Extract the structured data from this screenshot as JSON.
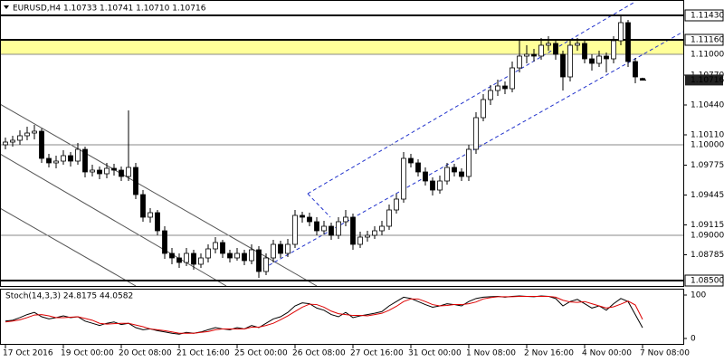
{
  "chart_data": [
    {
      "type": "candlestick",
      "title": "EURUSD,H4 1.10733 1.10741 1.10710 1.10716",
      "ohlc": [
        [
          1.1,
          1.1008,
          1.0995,
          1.1003
        ],
        [
          1.1003,
          1.101,
          1.0998,
          1.1005
        ],
        [
          1.1005,
          1.1016,
          1.1,
          1.101
        ],
        [
          1.101,
          1.102,
          1.1005,
          1.1013
        ],
        [
          1.1013,
          1.1022,
          1.1006,
          1.1015
        ],
        [
          1.1015,
          1.1018,
          1.098,
          1.0985
        ],
        [
          1.0985,
          1.099,
          1.0975,
          1.098
        ],
        [
          1.098,
          1.0988,
          1.0974,
          1.0982
        ],
        [
          1.0982,
          1.0994,
          1.0978,
          1.0988
        ],
        [
          1.0988,
          1.0992,
          1.0976,
          1.0982
        ],
        [
          1.0982,
          1.1002,
          1.0978,
          1.0995
        ],
        [
          1.0995,
          1.0998,
          1.0964,
          1.097
        ],
        [
          1.097,
          1.0978,
          1.0965,
          1.0972
        ],
        [
          1.0972,
          1.0976,
          1.0962,
          1.0968
        ],
        [
          1.0968,
          1.098,
          1.0963,
          1.0974
        ],
        [
          1.0974,
          1.0979,
          1.0966,
          1.0972
        ],
        [
          1.0972,
          1.0976,
          1.096,
          1.0965
        ],
        [
          1.0965,
          1.1038,
          1.096,
          1.0975
        ],
        [
          1.0975,
          1.098,
          1.094,
          1.0945
        ],
        [
          1.0945,
          1.095,
          1.0915,
          1.092
        ],
        [
          1.092,
          1.093,
          1.0914,
          1.0925
        ],
        [
          1.0925,
          1.0928,
          1.09,
          1.0905
        ],
        [
          1.0905,
          1.091,
          1.0874,
          1.088
        ],
        [
          1.088,
          1.0886,
          1.0868,
          1.0875
        ],
        [
          1.0875,
          1.088,
          1.0864,
          1.087
        ],
        [
          1.087,
          1.0886,
          1.0866,
          1.088
        ],
        [
          1.088,
          1.0884,
          1.0862,
          1.0868
        ],
        [
          1.0868,
          1.088,
          1.0864,
          1.0875
        ],
        [
          1.0875,
          1.089,
          1.087,
          1.0885
        ],
        [
          1.0885,
          1.0898,
          1.088,
          1.0892
        ],
        [
          1.0892,
          1.0895,
          1.0875,
          1.088
        ],
        [
          1.088,
          1.0884,
          1.087,
          1.0875
        ],
        [
          1.0875,
          1.0886,
          1.0872,
          1.088
        ],
        [
          1.088,
          1.0884,
          1.0867,
          1.0872
        ],
        [
          1.0872,
          1.089,
          1.0868,
          1.0884
        ],
        [
          1.0884,
          1.0888,
          1.0853,
          1.086
        ],
        [
          1.086,
          1.088,
          1.0856,
          1.0875
        ],
        [
          1.0875,
          1.0895,
          1.087,
          1.089
        ],
        [
          1.089,
          1.0894,
          1.0875,
          1.088
        ],
        [
          1.088,
          1.0896,
          1.0876,
          1.089
        ],
        [
          1.089,
          1.0928,
          1.0886,
          1.0922
        ],
        [
          1.0922,
          1.0926,
          1.0914,
          1.092
        ],
        [
          1.092,
          1.0925,
          1.091,
          1.0915
        ],
        [
          1.0915,
          1.092,
          1.09,
          1.0905
        ],
        [
          1.0905,
          1.0916,
          1.0901,
          1.091
        ],
        [
          1.091,
          1.0914,
          1.0895,
          1.09
        ],
        [
          1.09,
          1.092,
          1.0896,
          1.0915
        ],
        [
          1.0915,
          1.0928,
          1.091,
          1.092
        ],
        [
          1.092,
          1.0924,
          1.0884,
          1.089
        ],
        [
          1.089,
          1.0904,
          1.0886,
          1.0898
        ],
        [
          1.0898,
          1.0905,
          1.0893,
          1.09
        ],
        [
          1.09,
          1.091,
          1.0896,
          1.0905
        ],
        [
          1.0905,
          1.0916,
          1.09,
          1.091
        ],
        [
          1.091,
          1.0934,
          1.0906,
          1.0928
        ],
        [
          1.0928,
          1.0946,
          1.0924,
          1.094
        ],
        [
          1.094,
          1.0992,
          1.0936,
          1.0985
        ],
        [
          1.0985,
          1.099,
          1.0975,
          1.098
        ],
        [
          1.098,
          1.0984,
          1.0965,
          1.097
        ],
        [
          1.097,
          1.0975,
          1.0955,
          1.096
        ],
        [
          1.096,
          1.0964,
          1.0944,
          1.095
        ],
        [
          1.095,
          1.0966,
          1.0946,
          1.096
        ],
        [
          1.096,
          1.098,
          1.0956,
          1.0975
        ],
        [
          1.0975,
          1.0979,
          1.0965,
          1.097
        ],
        [
          1.097,
          1.0974,
          1.096,
          1.0965
        ],
        [
          1.0965,
          1.1,
          1.096,
          1.0995
        ],
        [
          1.0995,
          1.1036,
          1.099,
          1.103
        ],
        [
          1.103,
          1.1056,
          1.1026,
          1.105
        ],
        [
          1.105,
          1.1066,
          1.1044,
          1.106
        ],
        [
          1.106,
          1.1072,
          1.1054,
          1.1065
        ],
        [
          1.1065,
          1.107,
          1.1056,
          1.1062
        ],
        [
          1.1062,
          1.1092,
          1.1058,
          1.1085
        ],
        [
          1.1085,
          1.1116,
          1.108,
          1.1098
        ],
        [
          1.1098,
          1.111,
          1.109,
          1.11
        ],
        [
          1.11,
          1.1106,
          1.1092,
          1.1098
        ],
        [
          1.1098,
          1.1118,
          1.1094,
          1.111
        ],
        [
          1.111,
          1.112,
          1.1104,
          1.1112
        ],
        [
          1.1112,
          1.1116,
          1.1094,
          1.11
        ],
        [
          1.11,
          1.1104,
          1.106,
          1.1075
        ],
        [
          1.1075,
          1.1116,
          1.107,
          1.111
        ],
        [
          1.111,
          1.1118,
          1.1104,
          1.1112
        ],
        [
          1.1112,
          1.1116,
          1.109,
          1.1095
        ],
        [
          1.1095,
          1.11,
          1.1082,
          1.109
        ],
        [
          1.109,
          1.1104,
          1.1086,
          1.1098
        ],
        [
          1.1098,
          1.1102,
          1.108,
          1.1095
        ],
        [
          1.1095,
          1.112,
          1.109,
          1.1115
        ],
        [
          1.1115,
          1.1143,
          1.111,
          1.1135
        ],
        [
          1.1135,
          1.1138,
          1.1086,
          1.1092
        ],
        [
          1.1092,
          1.1096,
          1.1068,
          1.1075
        ],
        [
          1.10733,
          1.10741,
          1.1071,
          1.10716
        ]
      ],
      "up_color": "#ffffff",
      "down_color": "#000000",
      "ylim": [
        1.0844,
        1.1157
      ],
      "yticks": [
        {
          "value": 1.1077,
          "label": "1.10770"
        },
        {
          "value": 1.1044,
          "label": "1.10440"
        },
        {
          "value": 1.1011,
          "label": "1.10110"
        },
        1.09775,
        1.09445,
        1.09115,
        1.08785
      ],
      "levels": [
        {
          "value": 1.1143,
          "label": "1.11430",
          "style": "box"
        },
        {
          "value": 1.1116,
          "label": "1.11160",
          "style": "box"
        },
        {
          "value": 1.11,
          "label": "1.11000",
          "style": "faded"
        },
        {
          "value": 1.1,
          "label": "1.10000",
          "style": "faded"
        },
        {
          "value": 1.09,
          "label": "1.09000",
          "style": "faded"
        },
        {
          "value": 1.085,
          "label": "1.08500",
          "style": "box"
        }
      ],
      "zone": [
        1.11,
        1.1116
      ],
      "zone_color": "#ffff99",
      "last_price": 1.10716,
      "xticks": [
        {
          "value": 0,
          "label": "17 Oct 2016"
        },
        {
          "value": 8,
          "label": "19 Oct 00:00"
        },
        {
          "value": 16,
          "label": "20 Oct 08:00"
        },
        {
          "value": 24,
          "label": "21 Oct 16:00"
        },
        {
          "value": 32,
          "label": "25 Oct 00:00"
        },
        {
          "value": 40,
          "label": "26 Oct 08:00"
        },
        {
          "value": 48,
          "label": "27 Oct 16:00"
        },
        {
          "value": 56,
          "label": "31 Oct 00:00"
        },
        {
          "value": 64,
          "label": "1 Nov 08:00"
        },
        {
          "value": 72,
          "label": "2 Nov 16:00"
        },
        {
          "value": 80,
          "label": "4 Nov 00:00"
        },
        {
          "value": 88,
          "label": "7 Nov 08:00"
        }
      ]
    },
    {
      "type": "line",
      "title": "Stoch(14,3,3) 24.8175 44.0582",
      "series": [
        {
          "name": "Main",
          "color": "#000000",
          "values": [
            40,
            42,
            48,
            55,
            60,
            50,
            45,
            48,
            52,
            48,
            50,
            40,
            35,
            30,
            35,
            38,
            32,
            35,
            25,
            20,
            22,
            18,
            15,
            12,
            10,
            14,
            12,
            15,
            20,
            25,
            22,
            20,
            25,
            22,
            30,
            25,
            35,
            45,
            50,
            60,
            75,
            82,
            80,
            70,
            65,
            55,
            50,
            60,
            48,
            52,
            55,
            58,
            62,
            75,
            85,
            95,
            92,
            85,
            78,
            72,
            75,
            80,
            78,
            75,
            85,
            92,
            95,
            96,
            97,
            95,
            97,
            98,
            97,
            96,
            98,
            97,
            92,
            75,
            85,
            90,
            80,
            70,
            75,
            65,
            80,
            92,
            85,
            55,
            24.8175
          ]
        },
        {
          "name": "Signal",
          "color": "#dd0000",
          "values": [
            38,
            40,
            43,
            48,
            54,
            55,
            52,
            48,
            48,
            49,
            50,
            46,
            42,
            35,
            33,
            34,
            35,
            35,
            31,
            27,
            22,
            20,
            18,
            15,
            12,
            12,
            12,
            14,
            16,
            20,
            22,
            22,
            22,
            22,
            26,
            26,
            30,
            35,
            43,
            52,
            62,
            72,
            79,
            78,
            72,
            63,
            57,
            55,
            53,
            53,
            52,
            55,
            58,
            65,
            74,
            85,
            91,
            91,
            85,
            78,
            75,
            76,
            78,
            78,
            80,
            84,
            91,
            94,
            96,
            96,
            96,
            97,
            97,
            97,
            97,
            97,
            95,
            88,
            84,
            83,
            85,
            80,
            75,
            70,
            73,
            79,
            86,
            77,
            44.0582
          ]
        }
      ],
      "ylim": [
        0,
        100
      ],
      "yticks": [
        100,
        0
      ]
    }
  ]
}
